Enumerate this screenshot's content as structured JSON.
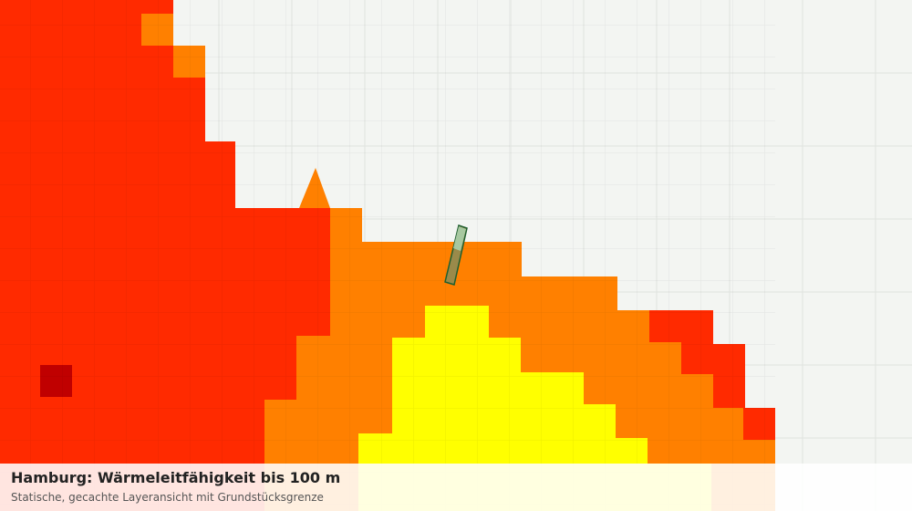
{
  "header": {
    "title": "Hamburg: Wärmeleitfähigkeit bis 100 m",
    "subtitle": "Statische, gecachte Layeransicht mit Grundstücksgrenze"
  }
}
